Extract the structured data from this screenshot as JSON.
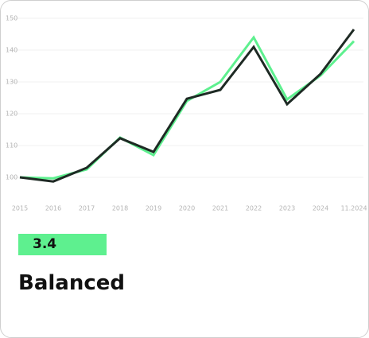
{
  "chart_data": {
    "type": "line",
    "categories": [
      "2015",
      "2016",
      "2017",
      "2018",
      "2019",
      "2020",
      "2021",
      "2022",
      "2023",
      "2024",
      "11.2024"
    ],
    "series": [
      {
        "color": "#5ef08f",
        "values": [
          100,
          99.7,
          102.5,
          112.5,
          107,
          124,
          130,
          144,
          124.5,
          132,
          142.8
        ]
      },
      {
        "color": "#1e2a24",
        "values": [
          100,
          98.7,
          103,
          112.3,
          108,
          124.7,
          127.5,
          141,
          123,
          132.5,
          146.5
        ]
      }
    ],
    "ylim": [
      94,
      153
    ],
    "yticks": [
      100,
      110,
      120,
      130,
      140,
      150
    ],
    "grid": true
  },
  "score": 3.4,
  "label": "Balanced"
}
